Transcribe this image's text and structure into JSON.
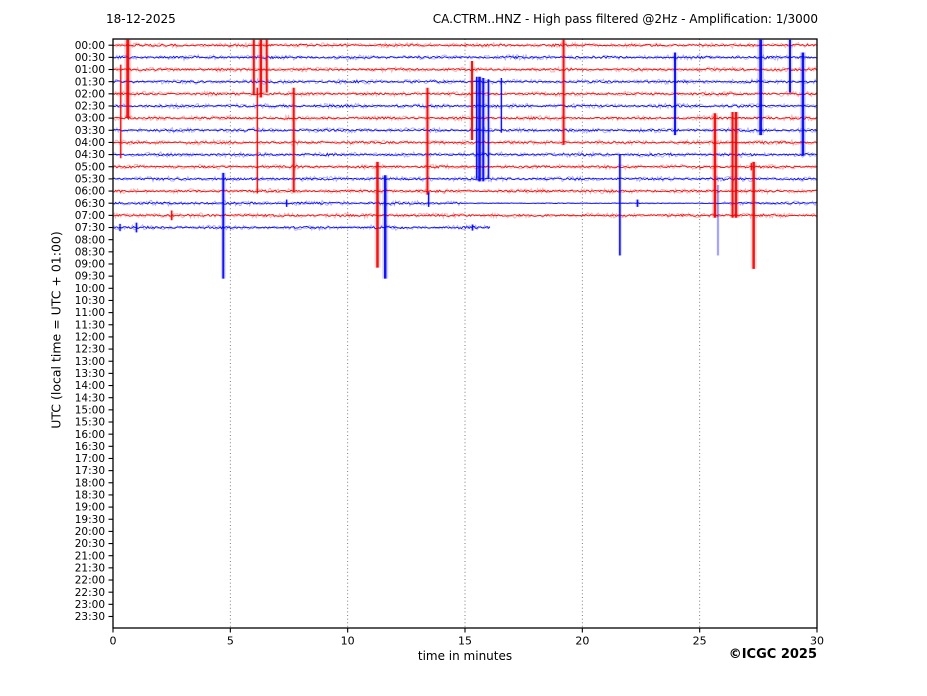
{
  "chart_data": {
    "type": "line",
    "subtype": "helicorder_seismogram",
    "date_label": "18-12-2025",
    "title": "CA.CTRM..HNZ - High pass filtered @2Hz - Amplification: 1/3000",
    "xlabel": "time in minutes",
    "ylabel": "UTC (local time = UTC + 01:00)",
    "copyright": "©ICGC 2025",
    "xlim": [
      0,
      30
    ],
    "x_ticks": [
      0,
      5,
      10,
      15,
      20,
      25,
      30
    ],
    "x_gridlines": [
      5,
      10,
      15,
      20,
      25
    ],
    "grid": "vertical-dotted",
    "legend": "none",
    "y_ticks": [
      "00:00",
      "00:30",
      "01:00",
      "01:30",
      "02:00",
      "02:30",
      "03:00",
      "03:30",
      "04:00",
      "04:30",
      "05:00",
      "05:30",
      "06:00",
      "06:30",
      "07:00",
      "07:30",
      "08:00",
      "08:30",
      "09:00",
      "09:30",
      "10:00",
      "10:30",
      "11:00",
      "11:30",
      "12:00",
      "12:30",
      "13:00",
      "13:30",
      "14:00",
      "14:30",
      "15:00",
      "15:30",
      "16:00",
      "16:30",
      "17:00",
      "17:30",
      "18:00",
      "18:30",
      "19:00",
      "19:30",
      "20:00",
      "20:30",
      "21:00",
      "21:30",
      "22:00",
      "22:30",
      "23:00",
      "23:30"
    ],
    "palette": {
      "red": "#f00000",
      "blue": "#0000f0",
      "grid": "#6e6e6e",
      "text": "#000000",
      "frame": "#000000"
    },
    "row_duration_minutes": 30,
    "rows": [
      {
        "label": "00:00",
        "color": "red",
        "start": 0,
        "end": 30
      },
      {
        "label": "00:30",
        "color": "blue",
        "start": 0,
        "end": 30
      },
      {
        "label": "01:00",
        "color": "red",
        "start": 0,
        "end": 30
      },
      {
        "label": "01:30",
        "color": "blue",
        "start": 0,
        "end": 30
      },
      {
        "label": "02:00",
        "color": "red",
        "start": 0,
        "end": 30
      },
      {
        "label": "02:30",
        "color": "blue",
        "start": 0,
        "end": 30
      },
      {
        "label": "03:00",
        "color": "red",
        "start": 0,
        "end": 30
      },
      {
        "label": "03:30",
        "color": "blue",
        "start": 0,
        "end": 30
      },
      {
        "label": "04:00",
        "color": "red",
        "start": 0,
        "end": 30
      },
      {
        "label": "04:30",
        "color": "blue",
        "start": 0,
        "end": 30
      },
      {
        "label": "05:00",
        "color": "red",
        "start": 0,
        "end": 30
      },
      {
        "label": "05:30",
        "color": "blue",
        "start": 0,
        "end": 30
      },
      {
        "label": "06:00",
        "color": "red",
        "start": 0,
        "end": 30
      },
      {
        "label": "06:30",
        "color": "blue",
        "start": 0,
        "end": 30,
        "amp_segments": [
          [
            0,
            14.9,
            1.0
          ],
          [
            14.9,
            26.0,
            0.28
          ],
          [
            26.0,
            30,
            0.85
          ]
        ]
      },
      {
        "label": "07:00",
        "color": "red",
        "start": 0,
        "end": 30
      },
      {
        "label": "07:30",
        "color": "blue",
        "start": 0,
        "end": 16.1
      }
    ],
    "events": [
      {
        "m": 0.33,
        "c": "red",
        "r0": 1.6,
        "r1": 9.3,
        "w": 1.3
      },
      {
        "m": 0.63,
        "c": "red",
        "r0": -0.8,
        "r1": 6.0,
        "w": 3.0
      },
      {
        "m": 6.0,
        "c": "red",
        "r0": -0.8,
        "r1": 4.1,
        "w": 2.0
      },
      {
        "m": 6.15,
        "c": "red",
        "r0": 3.5,
        "r1": 12.2,
        "w": 1.3
      },
      {
        "m": 6.3,
        "c": "red",
        "r0": -0.8,
        "r1": 4.3,
        "w": 2.5
      },
      {
        "m": 6.55,
        "c": "red",
        "r0": -0.8,
        "r1": 3.9,
        "w": 2.0
      },
      {
        "m": 7.7,
        "c": "red",
        "r0": 3.5,
        "r1": 12.1,
        "w": 2.0
      },
      {
        "m": 11.27,
        "c": "red",
        "r0": 9.6,
        "r1": 18.3,
        "w": 2.5
      },
      {
        "m": 11.6,
        "c": "blue",
        "r0": 10.7,
        "r1": 19.2,
        "w": 2.5
      },
      {
        "m": 13.4,
        "c": "red",
        "r0": 3.5,
        "r1": 12.3,
        "w": 2.0
      },
      {
        "m": 13.45,
        "c": "blue",
        "r0": 12.1,
        "r1": 13.3,
        "w": 1.3
      },
      {
        "m": 4.7,
        "c": "blue",
        "r0": 10.5,
        "r1": 19.2,
        "w": 2.0
      },
      {
        "m": 15.3,
        "c": "red",
        "r0": 1.3,
        "r1": 7.8,
        "w": 2.0
      },
      {
        "m": 15.5,
        "c": "blue",
        "r0": 2.6,
        "r1": 11.0,
        "w": 1.5
      },
      {
        "m": 15.62,
        "c": "blue",
        "r0": 2.6,
        "r1": 11.2,
        "w": 2.5
      },
      {
        "m": 15.78,
        "c": "blue",
        "r0": 2.7,
        "r1": 11.2,
        "w": 2.0
      },
      {
        "m": 16.0,
        "c": "blue",
        "r0": 2.8,
        "r1": 11.0,
        "w": 1.5
      },
      {
        "m": 16.55,
        "c": "blue",
        "r0": 2.7,
        "r1": 7.2,
        "w": 1.2
      },
      {
        "m": 19.2,
        "c": "red",
        "r0": -0.6,
        "r1": 8.2,
        "w": 2.0
      },
      {
        "m": 21.6,
        "c": "blue",
        "r0": 9.0,
        "r1": 17.3,
        "w": 1.6
      },
      {
        "m": 22.35,
        "c": "blue",
        "r0": 12.7,
        "r1": 13.3,
        "w": 1.6
      },
      {
        "m": 23.95,
        "c": "blue",
        "r0": 0.6,
        "r1": 7.4,
        "w": 2.0
      },
      {
        "m": 25.65,
        "c": "red",
        "r0": 5.6,
        "r1": 14.2,
        "w": 2.5
      },
      {
        "m": 25.78,
        "c": "blue",
        "r0": 11.5,
        "r1": 17.3,
        "w": 1.5,
        "o": 0.4
      },
      {
        "m": 26.4,
        "c": "red",
        "r0": 5.5,
        "r1": 14.2,
        "w": 2.0
      },
      {
        "m": 26.55,
        "c": "red",
        "r0": 5.5,
        "r1": 14.2,
        "w": 2.5
      },
      {
        "m": 27.3,
        "c": "red",
        "r0": 9.6,
        "r1": 18.4,
        "w": 2.5
      },
      {
        "m": 27.6,
        "c": "blue",
        "r0": -0.8,
        "r1": 7.4,
        "w": 2.8
      },
      {
        "m": 28.85,
        "c": "blue",
        "r0": -0.8,
        "r1": 3.9,
        "w": 2.0
      },
      {
        "m": 29.4,
        "c": "blue",
        "r0": 0.6,
        "r1": 9.1,
        "w": 2.5
      },
      {
        "m": 2.5,
        "c": "red",
        "r0": 13.6,
        "r1": 14.4,
        "w": 1.5
      },
      {
        "m": 1.0,
        "c": "blue",
        "r0": 14.6,
        "r1": 15.4,
        "w": 1.5
      },
      {
        "m": 0.3,
        "c": "blue",
        "r0": 14.7,
        "r1": 15.3,
        "w": 1.3
      },
      {
        "m": 15.32,
        "c": "blue",
        "r0": 14.75,
        "r1": 15.25,
        "w": 1.5
      },
      {
        "m": 7.4,
        "c": "blue",
        "r0": 12.7,
        "r1": 13.3,
        "w": 1.3
      },
      {
        "m": 27.2,
        "c": "red",
        "r0": 9.7,
        "r1": 10.3,
        "w": 1.3
      }
    ]
  }
}
